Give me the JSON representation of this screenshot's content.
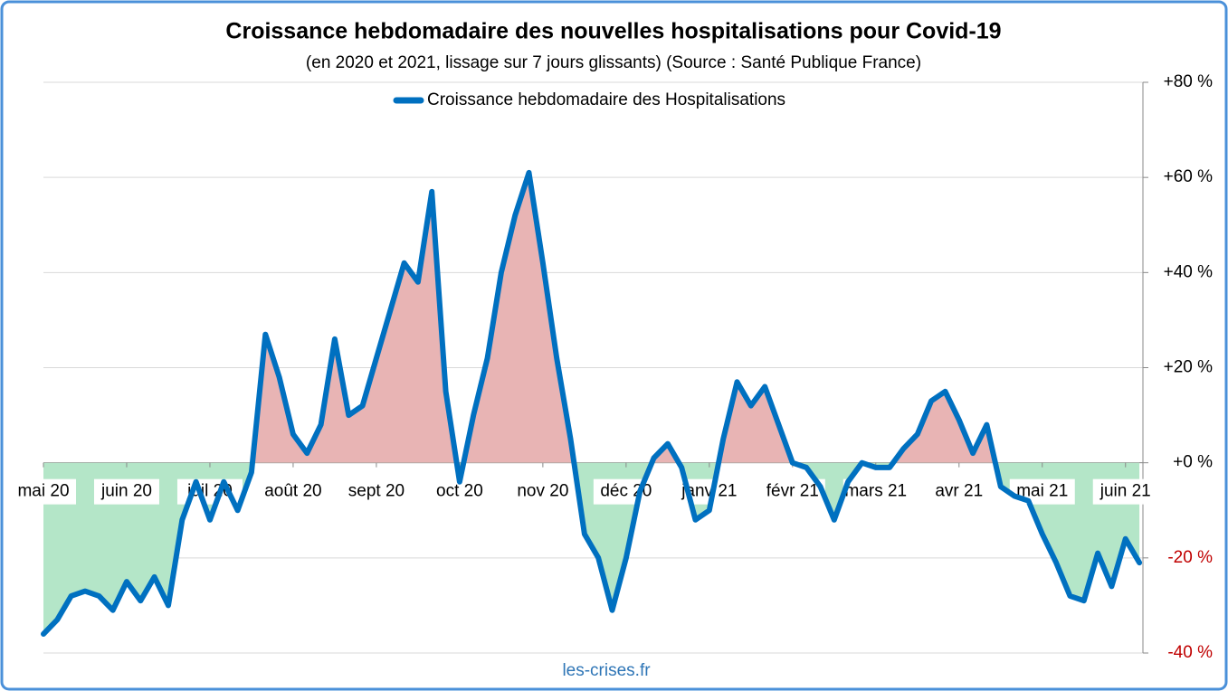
{
  "chart_data": {
    "type": "line",
    "title": "Croissance hebdomadaire des nouvelles hospitalisations pour Covid-19",
    "subtitle": "(en 2020 et 2021, lissage sur 7 jours glissants) (Source : Santé Publique France)",
    "source": "les-crises.fr",
    "categories": [
      "mai 20",
      null,
      null,
      null,
      null,
      null,
      "juin 20",
      null,
      null,
      null,
      null,
      null,
      "juil 20",
      null,
      null,
      null,
      null,
      null,
      "août 20",
      null,
      null,
      null,
      null,
      null,
      "sept 20",
      null,
      null,
      null,
      null,
      null,
      "oct 20",
      null,
      null,
      null,
      null,
      null,
      "nov 20",
      null,
      null,
      null,
      null,
      null,
      "déc 20",
      null,
      null,
      null,
      null,
      null,
      "janv 21",
      null,
      null,
      null,
      null,
      null,
      "févr 21",
      null,
      null,
      null,
      null,
      null,
      "mars 21",
      null,
      null,
      null,
      null,
      null,
      "avr 21",
      null,
      null,
      null,
      null,
      null,
      "mai 21",
      null,
      null,
      null,
      null,
      null,
      "juin 21",
      null
    ],
    "series": [
      {
        "name": "Croissance hebdomadaire des Hospitalisations",
        "color": "#0070c0",
        "values": [
          -36,
          -33,
          -28,
          -27,
          -28,
          -31,
          -25,
          -29,
          -24,
          -30,
          -12,
          -4,
          -12,
          -4,
          -10,
          -2,
          27,
          18,
          6,
          2,
          8,
          26,
          10,
          12,
          22,
          32,
          42,
          38,
          57,
          15,
          -4,
          10,
          22,
          40,
          52,
          61,
          42,
          22,
          5,
          -15,
          -20,
          -31,
          -20,
          -6,
          1,
          4,
          -1,
          -12,
          -10,
          5,
          17,
          12,
          16,
          8,
          0,
          -1,
          -5,
          -12,
          -4,
          0,
          -1,
          -1,
          3,
          6,
          13,
          15,
          9,
          2,
          8,
          -5,
          -7,
          -8,
          -15,
          -21,
          -28,
          -29,
          -19,
          -26,
          -16,
          -21
        ]
      }
    ],
    "positive_fill": "#e8b4b4",
    "negative_fill": "#b4e6c8",
    "negative_tick_color": "#c00000",
    "ylim": [
      -40,
      80
    ],
    "yticks": [
      {
        "value": -40,
        "label": "-40 %"
      },
      {
        "value": -20,
        "label": "-20 %"
      },
      {
        "value": 0,
        "label": "+0 %"
      },
      {
        "value": 20,
        "label": "+20 %"
      },
      {
        "value": 40,
        "label": "+40 %"
      },
      {
        "value": 60,
        "label": "+60 %"
      },
      {
        "value": 80,
        "label": "+80 %"
      }
    ],
    "grid": true,
    "legend": "top"
  }
}
